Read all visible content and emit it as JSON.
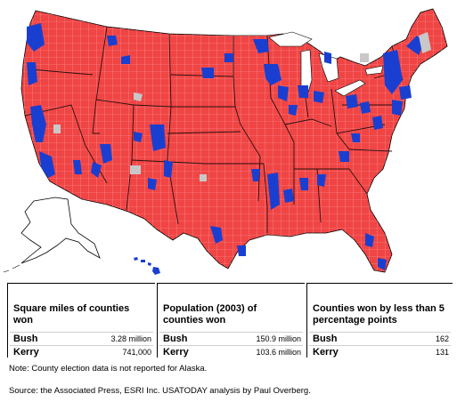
{
  "map": {
    "colors": {
      "bush": "#f04545",
      "kerry": "#1a3fd0",
      "no_data": "#c8c8c8",
      "water": "#ffffff",
      "county_lines": "#ffb0b0",
      "state_lines": "#2a1010"
    },
    "legend_note": "Counties colored red (Bush) or blue (Kerry); gray = no data"
  },
  "stats": [
    {
      "title": "Square miles of counties won",
      "rows": [
        {
          "label": "Bush",
          "value": "3.28 million"
        },
        {
          "label": "Kerry",
          "value": "741,000"
        }
      ]
    },
    {
      "title": "Population (2003) of counties won",
      "rows": [
        {
          "label": "Bush",
          "value": "150.9 million"
        },
        {
          "label": "Kerry",
          "value": "103.6 million"
        }
      ]
    },
    {
      "title": "Counties won by less than 5 percentage points",
      "rows": [
        {
          "label": "Bush",
          "value": "162"
        },
        {
          "label": "Kerry",
          "value": "131"
        }
      ]
    }
  ],
  "note": "Note: County election data is not reported for Alaska.",
  "source": "Source: the Associated Press, ESRI Inc. USATODAY analysis by Paul Overberg."
}
